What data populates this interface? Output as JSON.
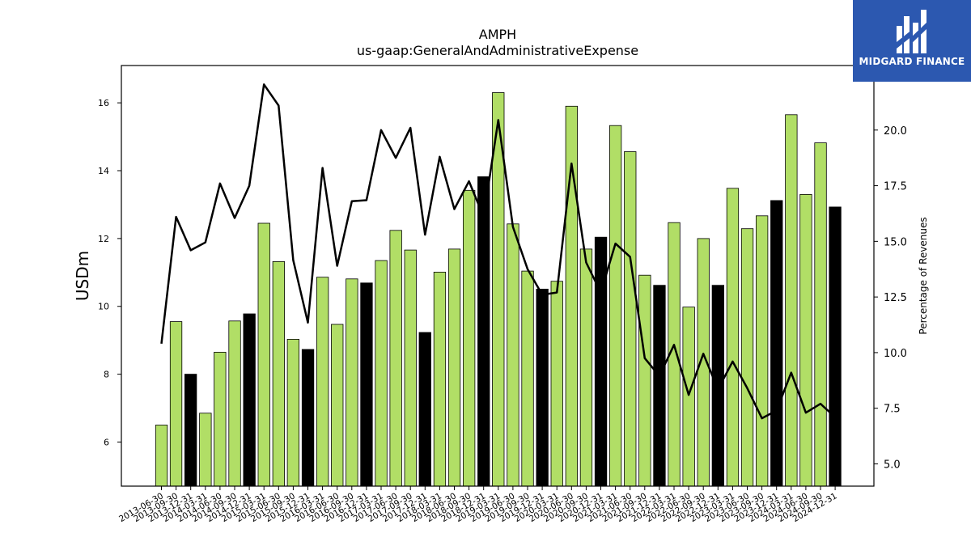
{
  "chart_data": {
    "type": "bar+line",
    "title": "AMPH",
    "subtitle": "us-gaap:GeneralAndAdministrativeExpense",
    "ylabel_left": "USDm",
    "ylabel_right": "Percentage of Revenues",
    "ylim_left": [
      4.7,
      17.1
    ],
    "ylim_right": [
      4.0,
      22.9
    ],
    "yticks_left": [
      6,
      8,
      10,
      12,
      14,
      16
    ],
    "yticks_right": [
      "5.0",
      "7.5",
      "10.0",
      "12.5",
      "15.0",
      "17.5",
      "20.0"
    ],
    "categories": [
      "2013-06-30",
      "2013-09-30",
      "2013-12-31",
      "2014-03-31",
      "2014-06-30",
      "2014-09-30",
      "2014-12-31",
      "2015-03-31",
      "2015-06-30",
      "2015-09-30",
      "2015-12-31",
      "2016-03-31",
      "2016-06-30",
      "2016-09-30",
      "2016-12-31",
      "2017-03-31",
      "2017-06-30",
      "2017-09-30",
      "2017-12-31",
      "2018-03-31",
      "2018-06-30",
      "2018-09-30",
      "2018-12-31",
      "2019-03-31",
      "2019-06-30",
      "2019-09-30",
      "2019-12-31",
      "2020-03-31",
      "2020-06-30",
      "2020-09-30",
      "2020-12-31",
      "2021-03-31",
      "2021-06-30",
      "2021-09-30",
      "2021-12-31",
      "2022-03-31",
      "2022-06-30",
      "2022-09-30",
      "2022-12-31",
      "2023-03-31",
      "2023-06-30",
      "2023-09-30",
      "2023-12-31",
      "2024-03-31",
      "2024-06-30",
      "2024-09-30",
      "2024-12-31"
    ],
    "series": [
      {
        "kind": "bar",
        "values": [
          6.5,
          9.55,
          8.0,
          6.85,
          8.65,
          9.57,
          9.78,
          12.45,
          11.32,
          9.03,
          8.73,
          10.86,
          9.47,
          10.81,
          10.69,
          11.35,
          12.24,
          11.66,
          9.23,
          11.01,
          11.69,
          13.42,
          13.82,
          16.3,
          12.43,
          11.04,
          10.51,
          10.74,
          15.9,
          11.69,
          12.04,
          15.33,
          14.56,
          10.92,
          10.62,
          12.47,
          9.98,
          12.0,
          10.62,
          13.48,
          12.29,
          12.67,
          13.12,
          15.65,
          13.3,
          14.82,
          12.93
        ],
        "colors": [
          "green",
          "green",
          "black",
          "green",
          "green",
          "green",
          "black",
          "green",
          "green",
          "green",
          "black",
          "green",
          "green",
          "green",
          "black",
          "green",
          "green",
          "green",
          "black",
          "green",
          "green",
          "green",
          "black",
          "green",
          "green",
          "green",
          "black",
          "green",
          "green",
          "green",
          "black",
          "green",
          "green",
          "green",
          "black",
          "green",
          "green",
          "green",
          "black",
          "green",
          "green",
          "green",
          "black",
          "green",
          "green",
          "green",
          "black"
        ]
      },
      {
        "kind": "line",
        "axis": "right",
        "values": [
          10.4,
          16.1,
          14.6,
          14.95,
          17.6,
          16.05,
          17.5,
          22.05,
          21.1,
          14.15,
          11.35,
          18.3,
          13.9,
          16.8,
          16.85,
          20.0,
          18.75,
          20.1,
          15.3,
          18.8,
          16.45,
          17.7,
          16.1,
          20.45,
          15.65,
          13.75,
          12.6,
          12.7,
          18.5,
          14.05,
          12.7,
          14.9,
          14.3,
          9.75,
          8.95,
          10.35,
          8.1,
          9.95,
          8.35,
          9.6,
          8.4,
          7.05,
          7.4,
          9.1,
          7.3,
          7.7,
          7.1
        ]
      }
    ],
    "colors": {
      "green": "#b1de66",
      "black": "#000000",
      "line": "#000000",
      "logo_bg": "#2c58b0"
    },
    "grid": false,
    "legend": "none"
  },
  "logo": {
    "text": "MIDGARD FINANCE",
    "icon": "midgard-logo-icon"
  }
}
